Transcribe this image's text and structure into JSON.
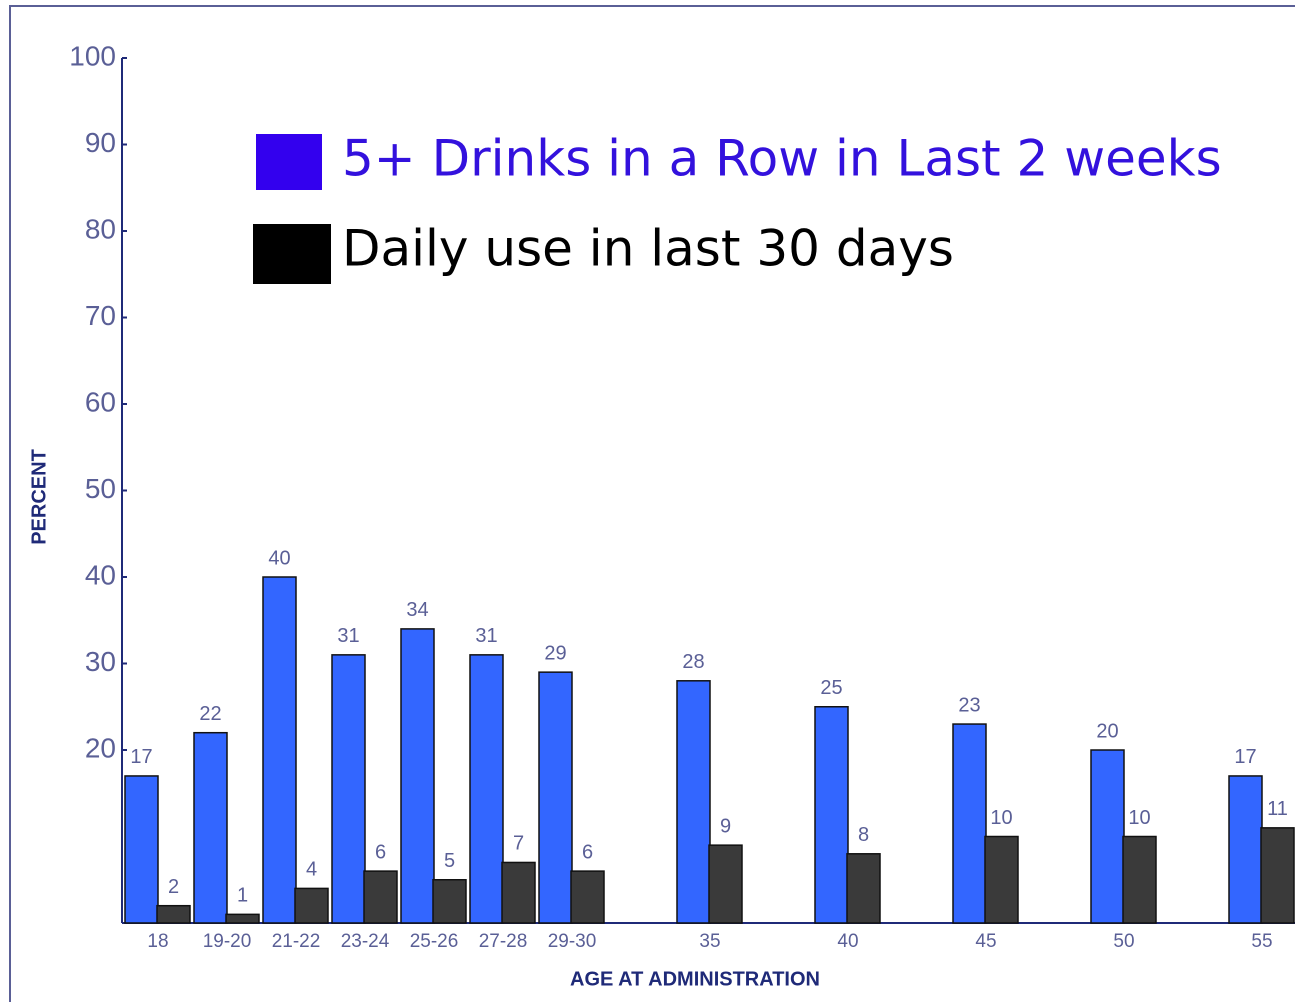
{
  "chart_data": {
    "type": "bar",
    "x_label": "AGE AT ADMINISTRATION",
    "y_label": "PERCENT",
    "categories": [
      "18",
      "19-20",
      "21-22",
      "23-24",
      "25-26",
      "27-28",
      "29-30",
      "35",
      "40",
      "45",
      "50",
      "55"
    ],
    "series": [
      {
        "name": "5+ Drinks in a Row in Last 2 weeks",
        "color": "#3366ff",
        "legend_color": "#3300ee",
        "text_color": "#3311dd",
        "values": [
          17,
          22,
          40,
          31,
          34,
          31,
          29,
          28,
          25,
          23,
          20,
          17
        ]
      },
      {
        "name": "Daily use in last 30 days",
        "color": "#3a3a3a",
        "legend_color": "#000000",
        "text_color": "#000000",
        "values": [
          2,
          1,
          4,
          6,
          5,
          7,
          6,
          9,
          8,
          10,
          10,
          11
        ]
      }
    ],
    "ylim": [
      0,
      100
    ],
    "yticks": [
      20,
      30,
      40,
      50,
      60,
      70,
      80,
      90,
      100
    ],
    "grid": false
  }
}
